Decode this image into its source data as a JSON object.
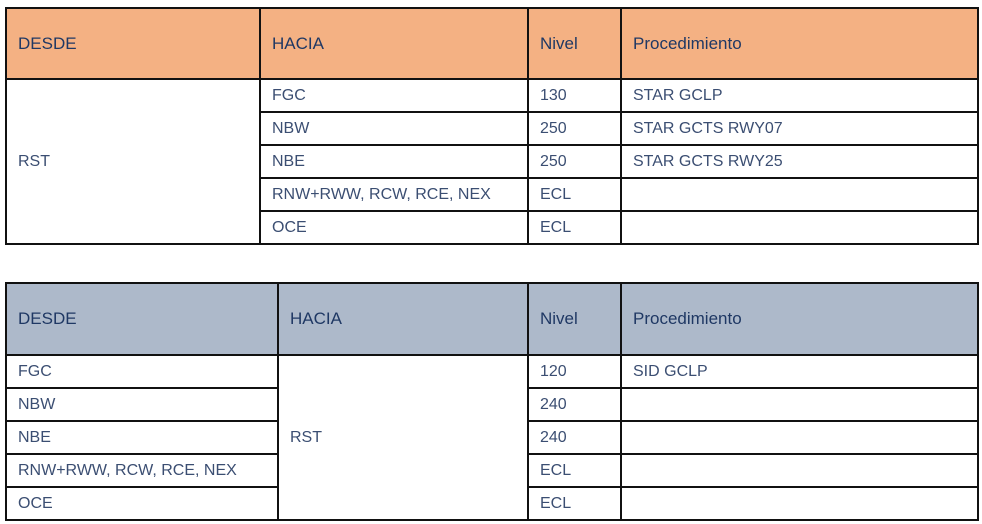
{
  "table1": {
    "header_color": "#f4b183",
    "headers": [
      "DESDE",
      "HACIA",
      "Nivel",
      "Procedimiento"
    ],
    "desde": "RST",
    "rows": [
      {
        "hacia": "FGC",
        "nivel": "130",
        "procedimiento": "STAR GCLP"
      },
      {
        "hacia": "NBW",
        "nivel": "250",
        "procedimiento": "STAR GCTS RWY07"
      },
      {
        "hacia": "NBE",
        "nivel": "250",
        "procedimiento": "STAR GCTS RWY25"
      },
      {
        "hacia": "RNW+RWW, RCW, RCE, NEX",
        "nivel": "ECL",
        "procedimiento": ""
      },
      {
        "hacia": "OCE",
        "nivel": "ECL",
        "procedimiento": ""
      }
    ]
  },
  "table2": {
    "header_color": "#adb9ca",
    "headers": [
      "DESDE",
      "HACIA",
      "Nivel",
      "Procedimiento"
    ],
    "hacia": "RST",
    "rows": [
      {
        "desde": "FGC",
        "nivel": "120",
        "procedimiento": "SID GCLP"
      },
      {
        "desde": "NBW",
        "nivel": "240",
        "procedimiento": ""
      },
      {
        "desde": "NBE",
        "nivel": "240",
        "procedimiento": ""
      },
      {
        "desde": "RNW+RWW, RCW, RCE, NEX",
        "nivel": "ECL",
        "procedimiento": ""
      },
      {
        "desde": "OCE",
        "nivel": "ECL",
        "procedimiento": ""
      }
    ]
  }
}
